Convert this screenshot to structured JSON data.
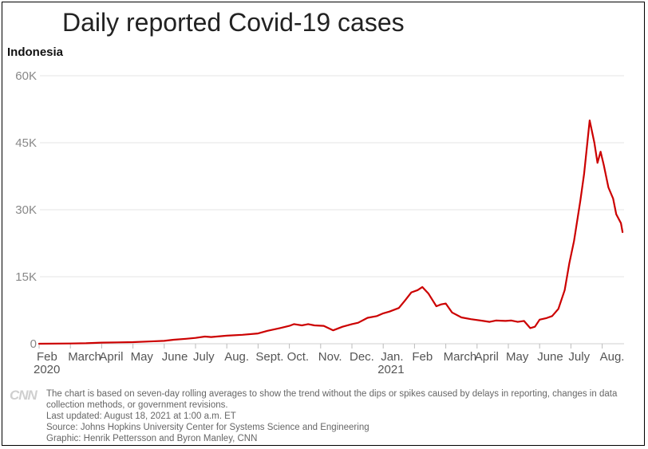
{
  "header": {
    "title": "Daily reported Covid-19 cases",
    "country": "Indonesia"
  },
  "footer": {
    "logo_text": "CNN",
    "note": "The chart is based on seven-day rolling averages to show the trend without the dips or spikes caused by delays in reporting, changes in data collection methods, or government revisions.",
    "updated": "Last updated: August 18, 2021 at 1:00 a.m. ET",
    "source": "Source: Johns Hopkins University Center for Systems Science and Engineering",
    "credit": "Graphic: Henrik Pettersson and Byron Manley, CNN"
  },
  "colors": {
    "line": "#cc0000",
    "grid": "#e6e6e6",
    "axis_text": "#888888",
    "tick_text": "#555555"
  },
  "chart_data": {
    "type": "line",
    "title": "Daily reported Covid-19 cases",
    "series_name": "Indonesia",
    "ylim": [
      0,
      60000
    ],
    "yticks": [
      {
        "value": 0,
        "label": "0"
      },
      {
        "value": 15000,
        "label": "15K"
      },
      {
        "value": 30000,
        "label": "30K"
      },
      {
        "value": 45000,
        "label": "45K"
      },
      {
        "value": 60000,
        "label": "60K"
      }
    ],
    "xlim": [
      0,
      19.3
    ],
    "x_unit": "months since Feb 1, 2020",
    "xticks": [
      {
        "value": 0,
        "label": "Feb",
        "sublabel": "2020"
      },
      {
        "value": 1,
        "label": "March"
      },
      {
        "value": 2,
        "label": "April"
      },
      {
        "value": 3,
        "label": "May"
      },
      {
        "value": 4,
        "label": "June"
      },
      {
        "value": 5,
        "label": "July"
      },
      {
        "value": 6,
        "label": "Aug."
      },
      {
        "value": 7,
        "label": "Sept."
      },
      {
        "value": 8,
        "label": "Oct."
      },
      {
        "value": 9,
        "label": "Nov."
      },
      {
        "value": 10,
        "label": "Dec."
      },
      {
        "value": 11,
        "label": "Jan.",
        "sublabel": "2021"
      },
      {
        "value": 12,
        "label": "Feb"
      },
      {
        "value": 13,
        "label": "March"
      },
      {
        "value": 14,
        "label": "April"
      },
      {
        "value": 15,
        "label": "May"
      },
      {
        "value": 16,
        "label": "June"
      },
      {
        "value": 17,
        "label": "July"
      },
      {
        "value": 18,
        "label": "Aug."
      }
    ],
    "points": [
      [
        0,
        0
      ],
      [
        1,
        50
      ],
      [
        1.5,
        100
      ],
      [
        2,
        250
      ],
      [
        2.5,
        300
      ],
      [
        3,
        350
      ],
      [
        3.5,
        500
      ],
      [
        4,
        650
      ],
      [
        4.3,
        900
      ],
      [
        4.7,
        1100
      ],
      [
        5,
        1300
      ],
      [
        5.3,
        1600
      ],
      [
        5.5,
        1500
      ],
      [
        6,
        1800
      ],
      [
        6.5,
        2000
      ],
      [
        7,
        2300
      ],
      [
        7.3,
        2900
      ],
      [
        7.7,
        3500
      ],
      [
        8,
        4000
      ],
      [
        8.15,
        4400
      ],
      [
        8.4,
        4100
      ],
      [
        8.6,
        4400
      ],
      [
        8.8,
        4100
      ],
      [
        9.1,
        4000
      ],
      [
        9.4,
        3000
      ],
      [
        9.7,
        3800
      ],
      [
        10,
        4400
      ],
      [
        10.2,
        4700
      ],
      [
        10.5,
        5800
      ],
      [
        10.8,
        6200
      ],
      [
        11,
        6800
      ],
      [
        11.2,
        7200
      ],
      [
        11.5,
        8000
      ],
      [
        11.7,
        9700
      ],
      [
        11.9,
        11500
      ],
      [
        12.1,
        12000
      ],
      [
        12.25,
        12700
      ],
      [
        12.45,
        11200
      ],
      [
        12.7,
        8400
      ],
      [
        12.85,
        8800
      ],
      [
        13.0,
        9000
      ],
      [
        13.2,
        7000
      ],
      [
        13.5,
        5900
      ],
      [
        13.8,
        5500
      ],
      [
        14.2,
        5100
      ],
      [
        14.4,
        4900
      ],
      [
        14.6,
        5200
      ],
      [
        14.9,
        5100
      ],
      [
        15.1,
        5200
      ],
      [
        15.3,
        4900
      ],
      [
        15.5,
        5100
      ],
      [
        15.7,
        3500
      ],
      [
        15.85,
        3800
      ],
      [
        16.0,
        5400
      ],
      [
        16.2,
        5700
      ],
      [
        16.4,
        6200
      ],
      [
        16.6,
        7800
      ],
      [
        16.8,
        12000
      ],
      [
        16.95,
        18000
      ],
      [
        17.1,
        23000
      ],
      [
        17.3,
        32000
      ],
      [
        17.42,
        38000
      ],
      [
        17.6,
        50000
      ],
      [
        17.75,
        45000
      ],
      [
        17.85,
        40500
      ],
      [
        17.95,
        43000
      ],
      [
        18.05,
        40000
      ],
      [
        18.2,
        35000
      ],
      [
        18.35,
        32500
      ],
      [
        18.45,
        29000
      ],
      [
        18.6,
        27000
      ],
      [
        18.65,
        25000
      ]
    ]
  }
}
